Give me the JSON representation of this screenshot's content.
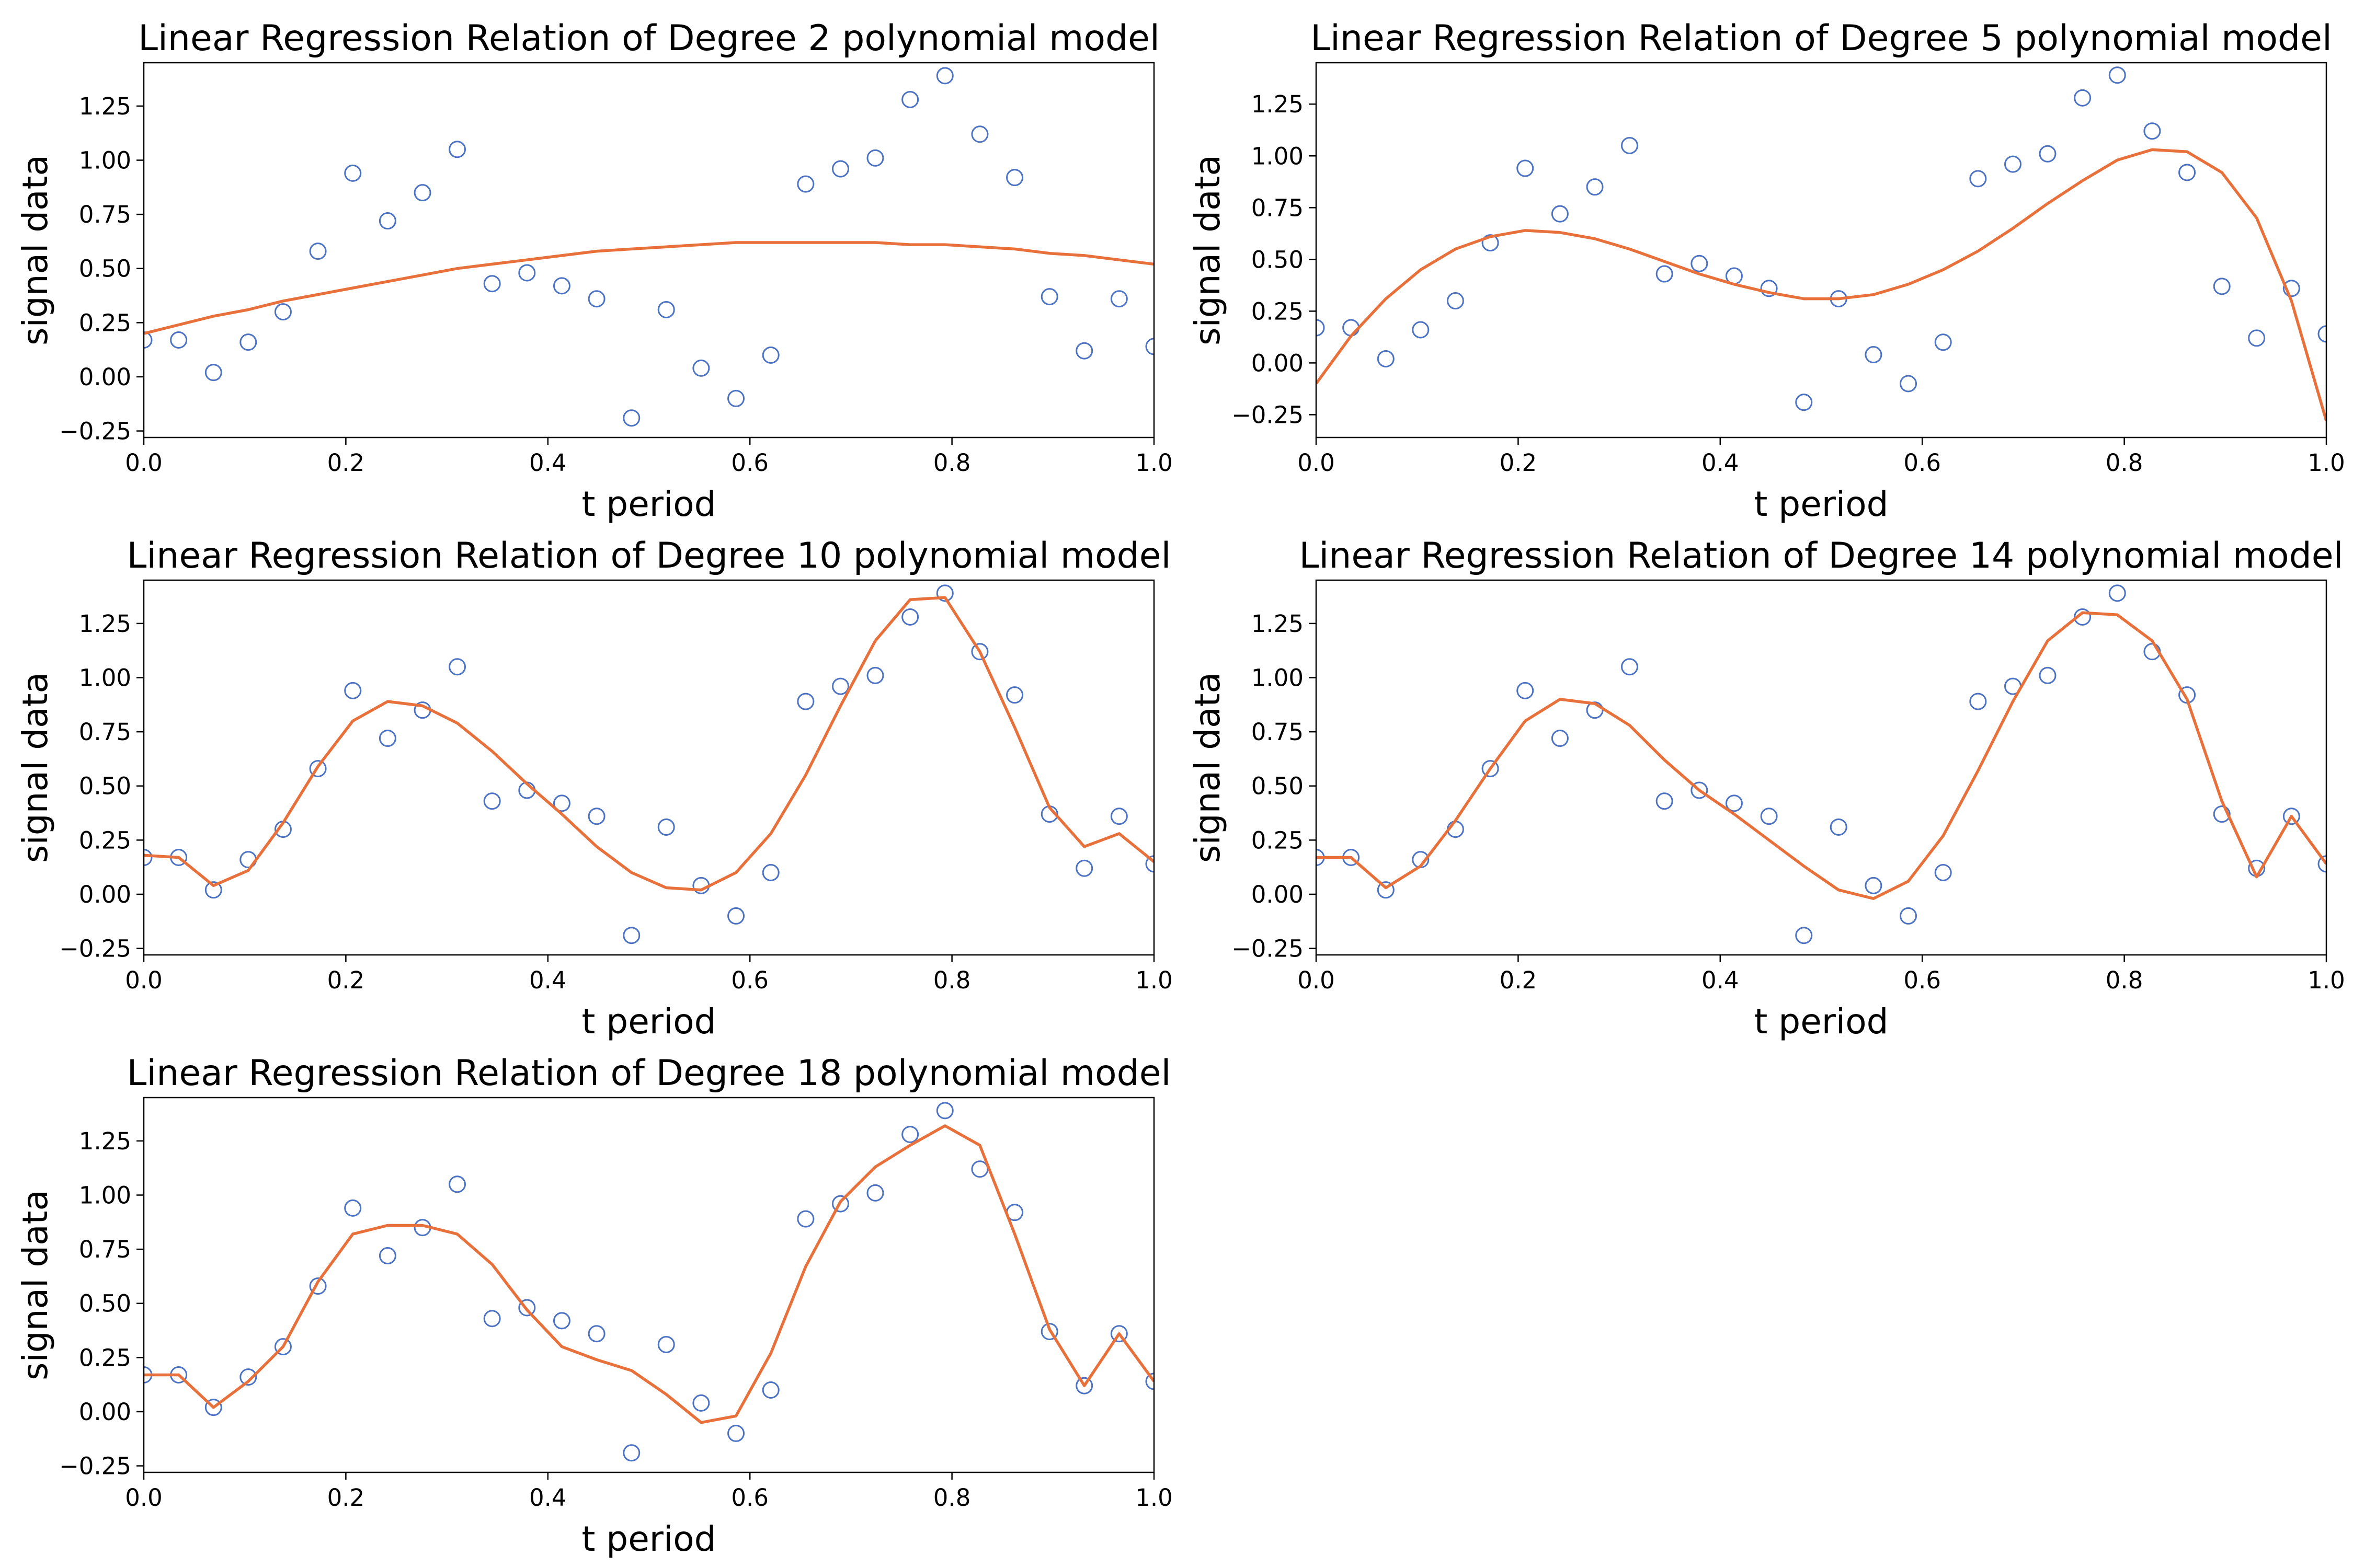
{
  "chart_data": [
    {
      "type": "line",
      "title": "Linear Regression Relation of Degree 2 polynomial model",
      "xlabel": "t period",
      "ylabel": "signal data",
      "xlim": [
        0.0,
        1.0
      ],
      "ylim": [
        -0.28,
        1.45
      ],
      "xticks": [
        "0.0",
        "0.2",
        "0.4",
        "0.6",
        "0.8",
        "1.0"
      ],
      "yticks": [
        "−0.25",
        "0.00",
        "0.25",
        "0.50",
        "0.75",
        "1.00",
        "1.25"
      ],
      "grid": false,
      "series": [
        {
          "style": "scatter",
          "color": "#4c72c4",
          "x": [
            0.0,
            0.0345,
            0.069,
            0.1034,
            0.1379,
            0.1724,
            0.2069,
            0.2414,
            0.2759,
            0.3103,
            0.3448,
            0.3793,
            0.4138,
            0.4483,
            0.4828,
            0.5172,
            0.5517,
            0.5862,
            0.6207,
            0.6552,
            0.6897,
            0.7241,
            0.7586,
            0.7931,
            0.8276,
            0.8621,
            0.8966,
            0.931,
            0.9655,
            1.0
          ],
          "y": [
            0.17,
            0.17,
            0.02,
            0.16,
            0.3,
            0.58,
            0.94,
            0.72,
            0.85,
            1.05,
            0.43,
            0.48,
            0.42,
            0.36,
            -0.19,
            0.31,
            0.04,
            -0.1,
            0.1,
            0.89,
            0.96,
            1.01,
            1.28,
            1.39,
            1.12,
            0.92,
            0.37,
            0.12,
            0.36,
            0.14
          ]
        },
        {
          "style": "line",
          "color": "#e8703a",
          "x": [
            0.0,
            0.0345,
            0.069,
            0.1034,
            0.1379,
            0.1724,
            0.2069,
            0.2414,
            0.2759,
            0.3103,
            0.3448,
            0.3793,
            0.4138,
            0.4483,
            0.4828,
            0.5172,
            0.5517,
            0.5862,
            0.6207,
            0.6552,
            0.6897,
            0.7241,
            0.7586,
            0.7931,
            0.8276,
            0.8621,
            0.8966,
            0.931,
            0.9655,
            1.0
          ],
          "y": [
            0.2,
            0.24,
            0.28,
            0.31,
            0.35,
            0.38,
            0.41,
            0.44,
            0.47,
            0.5,
            0.52,
            0.54,
            0.56,
            0.58,
            0.59,
            0.6,
            0.61,
            0.62,
            0.62,
            0.62,
            0.62,
            0.62,
            0.61,
            0.61,
            0.6,
            0.59,
            0.57,
            0.56,
            0.54,
            0.52
          ]
        }
      ]
    },
    {
      "type": "line",
      "title": "Linear Regression Relation of Degree 5 polynomial model",
      "xlabel": "t period",
      "ylabel": "signal data",
      "xlim": [
        0.0,
        1.0
      ],
      "ylim": [
        -0.36,
        1.45
      ],
      "xticks": [
        "0.0",
        "0.2",
        "0.4",
        "0.6",
        "0.8",
        "1.0"
      ],
      "yticks": [
        "−0.25",
        "0.00",
        "0.25",
        "0.50",
        "0.75",
        "1.00",
        "1.25"
      ],
      "grid": false,
      "series": [
        {
          "style": "scatter",
          "color": "#4c72c4",
          "x": [
            0.0,
            0.0345,
            0.069,
            0.1034,
            0.1379,
            0.1724,
            0.2069,
            0.2414,
            0.2759,
            0.3103,
            0.3448,
            0.3793,
            0.4138,
            0.4483,
            0.4828,
            0.5172,
            0.5517,
            0.5862,
            0.6207,
            0.6552,
            0.6897,
            0.7241,
            0.7586,
            0.7931,
            0.8276,
            0.8621,
            0.8966,
            0.931,
            0.9655,
            1.0
          ],
          "y": [
            0.17,
            0.17,
            0.02,
            0.16,
            0.3,
            0.58,
            0.94,
            0.72,
            0.85,
            1.05,
            0.43,
            0.48,
            0.42,
            0.36,
            -0.19,
            0.31,
            0.04,
            -0.1,
            0.1,
            0.89,
            0.96,
            1.01,
            1.28,
            1.39,
            1.12,
            0.92,
            0.37,
            0.12,
            0.36,
            0.14
          ]
        },
        {
          "style": "line",
          "color": "#e8703a",
          "x": [
            0.0,
            0.0345,
            0.069,
            0.1034,
            0.1379,
            0.1724,
            0.2069,
            0.2414,
            0.2759,
            0.3103,
            0.3448,
            0.3793,
            0.4138,
            0.4483,
            0.4828,
            0.5172,
            0.5517,
            0.5862,
            0.6207,
            0.6552,
            0.6897,
            0.7241,
            0.7586,
            0.7931,
            0.8276,
            0.8621,
            0.8966,
            0.931,
            0.9655,
            1.0
          ],
          "y": [
            -0.1,
            0.13,
            0.31,
            0.45,
            0.55,
            0.61,
            0.64,
            0.63,
            0.6,
            0.55,
            0.49,
            0.43,
            0.38,
            0.34,
            0.31,
            0.31,
            0.33,
            0.38,
            0.45,
            0.54,
            0.65,
            0.77,
            0.88,
            0.98,
            1.03,
            1.02,
            0.92,
            0.7,
            0.3,
            -0.28
          ]
        }
      ]
    },
    {
      "type": "line",
      "title": "Linear Regression Relation of Degree 10 polynomial model",
      "xlabel": "t period",
      "ylabel": "signal data",
      "xlim": [
        0.0,
        1.0
      ],
      "ylim": [
        -0.28,
        1.45
      ],
      "xticks": [
        "0.0",
        "0.2",
        "0.4",
        "0.6",
        "0.8",
        "1.0"
      ],
      "yticks": [
        "−0.25",
        "0.00",
        "0.25",
        "0.50",
        "0.75",
        "1.00",
        "1.25"
      ],
      "grid": false,
      "series": [
        {
          "style": "scatter",
          "color": "#4c72c4",
          "x": [
            0.0,
            0.0345,
            0.069,
            0.1034,
            0.1379,
            0.1724,
            0.2069,
            0.2414,
            0.2759,
            0.3103,
            0.3448,
            0.3793,
            0.4138,
            0.4483,
            0.4828,
            0.5172,
            0.5517,
            0.5862,
            0.6207,
            0.6552,
            0.6897,
            0.7241,
            0.7586,
            0.7931,
            0.8276,
            0.8621,
            0.8966,
            0.931,
            0.9655,
            1.0
          ],
          "y": [
            0.17,
            0.17,
            0.02,
            0.16,
            0.3,
            0.58,
            0.94,
            0.72,
            0.85,
            1.05,
            0.43,
            0.48,
            0.42,
            0.36,
            -0.19,
            0.31,
            0.04,
            -0.1,
            0.1,
            0.89,
            0.96,
            1.01,
            1.28,
            1.39,
            1.12,
            0.92,
            0.37,
            0.12,
            0.36,
            0.14
          ]
        },
        {
          "style": "line",
          "color": "#e8703a",
          "x": [
            0.0,
            0.0345,
            0.069,
            0.1034,
            0.1379,
            0.1724,
            0.2069,
            0.2414,
            0.2759,
            0.3103,
            0.3448,
            0.3793,
            0.4138,
            0.4483,
            0.4828,
            0.5172,
            0.5517,
            0.5862,
            0.6207,
            0.6552,
            0.6897,
            0.7241,
            0.7586,
            0.7931,
            0.8276,
            0.8621,
            0.8966,
            0.931,
            0.9655,
            1.0
          ],
          "y": [
            0.18,
            0.17,
            0.04,
            0.11,
            0.33,
            0.59,
            0.8,
            0.89,
            0.87,
            0.79,
            0.66,
            0.51,
            0.37,
            0.22,
            0.1,
            0.03,
            0.02,
            0.1,
            0.28,
            0.55,
            0.87,
            1.17,
            1.36,
            1.37,
            1.12,
            0.77,
            0.4,
            0.22,
            0.28,
            0.15
          ]
        }
      ]
    },
    {
      "type": "line",
      "title": "Linear Regression Relation of Degree 14 polynomial model",
      "xlabel": "t period",
      "ylabel": "signal data",
      "xlim": [
        0.0,
        1.0
      ],
      "ylim": [
        -0.28,
        1.45
      ],
      "xticks": [
        "0.0",
        "0.2",
        "0.4",
        "0.6",
        "0.8",
        "1.0"
      ],
      "yticks": [
        "−0.25",
        "0.00",
        "0.25",
        "0.50",
        "0.75",
        "1.00",
        "1.25"
      ],
      "grid": false,
      "series": [
        {
          "style": "scatter",
          "color": "#4c72c4",
          "x": [
            0.0,
            0.0345,
            0.069,
            0.1034,
            0.1379,
            0.1724,
            0.2069,
            0.2414,
            0.2759,
            0.3103,
            0.3448,
            0.3793,
            0.4138,
            0.4483,
            0.4828,
            0.5172,
            0.5517,
            0.5862,
            0.6207,
            0.6552,
            0.6897,
            0.7241,
            0.7586,
            0.7931,
            0.8276,
            0.8621,
            0.8966,
            0.931,
            0.9655,
            1.0
          ],
          "y": [
            0.17,
            0.17,
            0.02,
            0.16,
            0.3,
            0.58,
            0.94,
            0.72,
            0.85,
            1.05,
            0.43,
            0.48,
            0.42,
            0.36,
            -0.19,
            0.31,
            0.04,
            -0.1,
            0.1,
            0.89,
            0.96,
            1.01,
            1.28,
            1.39,
            1.12,
            0.92,
            0.37,
            0.12,
            0.36,
            0.14
          ]
        },
        {
          "style": "line",
          "color": "#e8703a",
          "x": [
            0.0,
            0.0345,
            0.069,
            0.1034,
            0.1379,
            0.1724,
            0.2069,
            0.2414,
            0.2759,
            0.3103,
            0.3448,
            0.3793,
            0.4138,
            0.4483,
            0.4828,
            0.5172,
            0.5517,
            0.5862,
            0.6207,
            0.6552,
            0.6897,
            0.7241,
            0.7586,
            0.7931,
            0.8276,
            0.8621,
            0.8966,
            0.931,
            0.9655,
            1.0
          ],
          "y": [
            0.17,
            0.17,
            0.03,
            0.13,
            0.34,
            0.58,
            0.8,
            0.9,
            0.88,
            0.78,
            0.62,
            0.48,
            0.37,
            0.25,
            0.13,
            0.02,
            -0.02,
            0.06,
            0.27,
            0.57,
            0.89,
            1.17,
            1.3,
            1.29,
            1.17,
            0.9,
            0.43,
            0.08,
            0.36,
            0.14
          ]
        }
      ]
    },
    {
      "type": "line",
      "title": "Linear Regression Relation of Degree 18 polynomial model",
      "xlabel": "t period",
      "ylabel": "signal data",
      "xlim": [
        0.0,
        1.0
      ],
      "ylim": [
        -0.28,
        1.45
      ],
      "xticks": [
        "0.0",
        "0.2",
        "0.4",
        "0.6",
        "0.8",
        "1.0"
      ],
      "yticks": [
        "−0.25",
        "0.00",
        "0.25",
        "0.50",
        "0.75",
        "1.00",
        "1.25"
      ],
      "grid": false,
      "series": [
        {
          "style": "scatter",
          "color": "#4c72c4",
          "x": [
            0.0,
            0.0345,
            0.069,
            0.1034,
            0.1379,
            0.1724,
            0.2069,
            0.2414,
            0.2759,
            0.3103,
            0.3448,
            0.3793,
            0.4138,
            0.4483,
            0.4828,
            0.5172,
            0.5517,
            0.5862,
            0.6207,
            0.6552,
            0.6897,
            0.7241,
            0.7586,
            0.7931,
            0.8276,
            0.8621,
            0.8966,
            0.931,
            0.9655,
            1.0
          ],
          "y": [
            0.17,
            0.17,
            0.02,
            0.16,
            0.3,
            0.58,
            0.94,
            0.72,
            0.85,
            1.05,
            0.43,
            0.48,
            0.42,
            0.36,
            -0.19,
            0.31,
            0.04,
            -0.1,
            0.1,
            0.89,
            0.96,
            1.01,
            1.28,
            1.39,
            1.12,
            0.92,
            0.37,
            0.12,
            0.36,
            0.14
          ]
        },
        {
          "style": "line",
          "color": "#e8703a",
          "x": [
            0.0,
            0.0345,
            0.069,
            0.1034,
            0.1379,
            0.1724,
            0.2069,
            0.2414,
            0.2759,
            0.3103,
            0.3448,
            0.3793,
            0.4138,
            0.4483,
            0.4828,
            0.5172,
            0.5517,
            0.5862,
            0.6207,
            0.6552,
            0.6897,
            0.7241,
            0.7586,
            0.7931,
            0.8276,
            0.8621,
            0.8966,
            0.931,
            0.9655,
            1.0
          ],
          "y": [
            0.17,
            0.17,
            0.02,
            0.14,
            0.3,
            0.6,
            0.82,
            0.86,
            0.86,
            0.82,
            0.68,
            0.47,
            0.3,
            0.24,
            0.19,
            0.08,
            -0.05,
            -0.02,
            0.27,
            0.67,
            0.97,
            1.13,
            1.23,
            1.32,
            1.23,
            0.82,
            0.38,
            0.12,
            0.36,
            0.14
          ]
        }
      ]
    }
  ]
}
